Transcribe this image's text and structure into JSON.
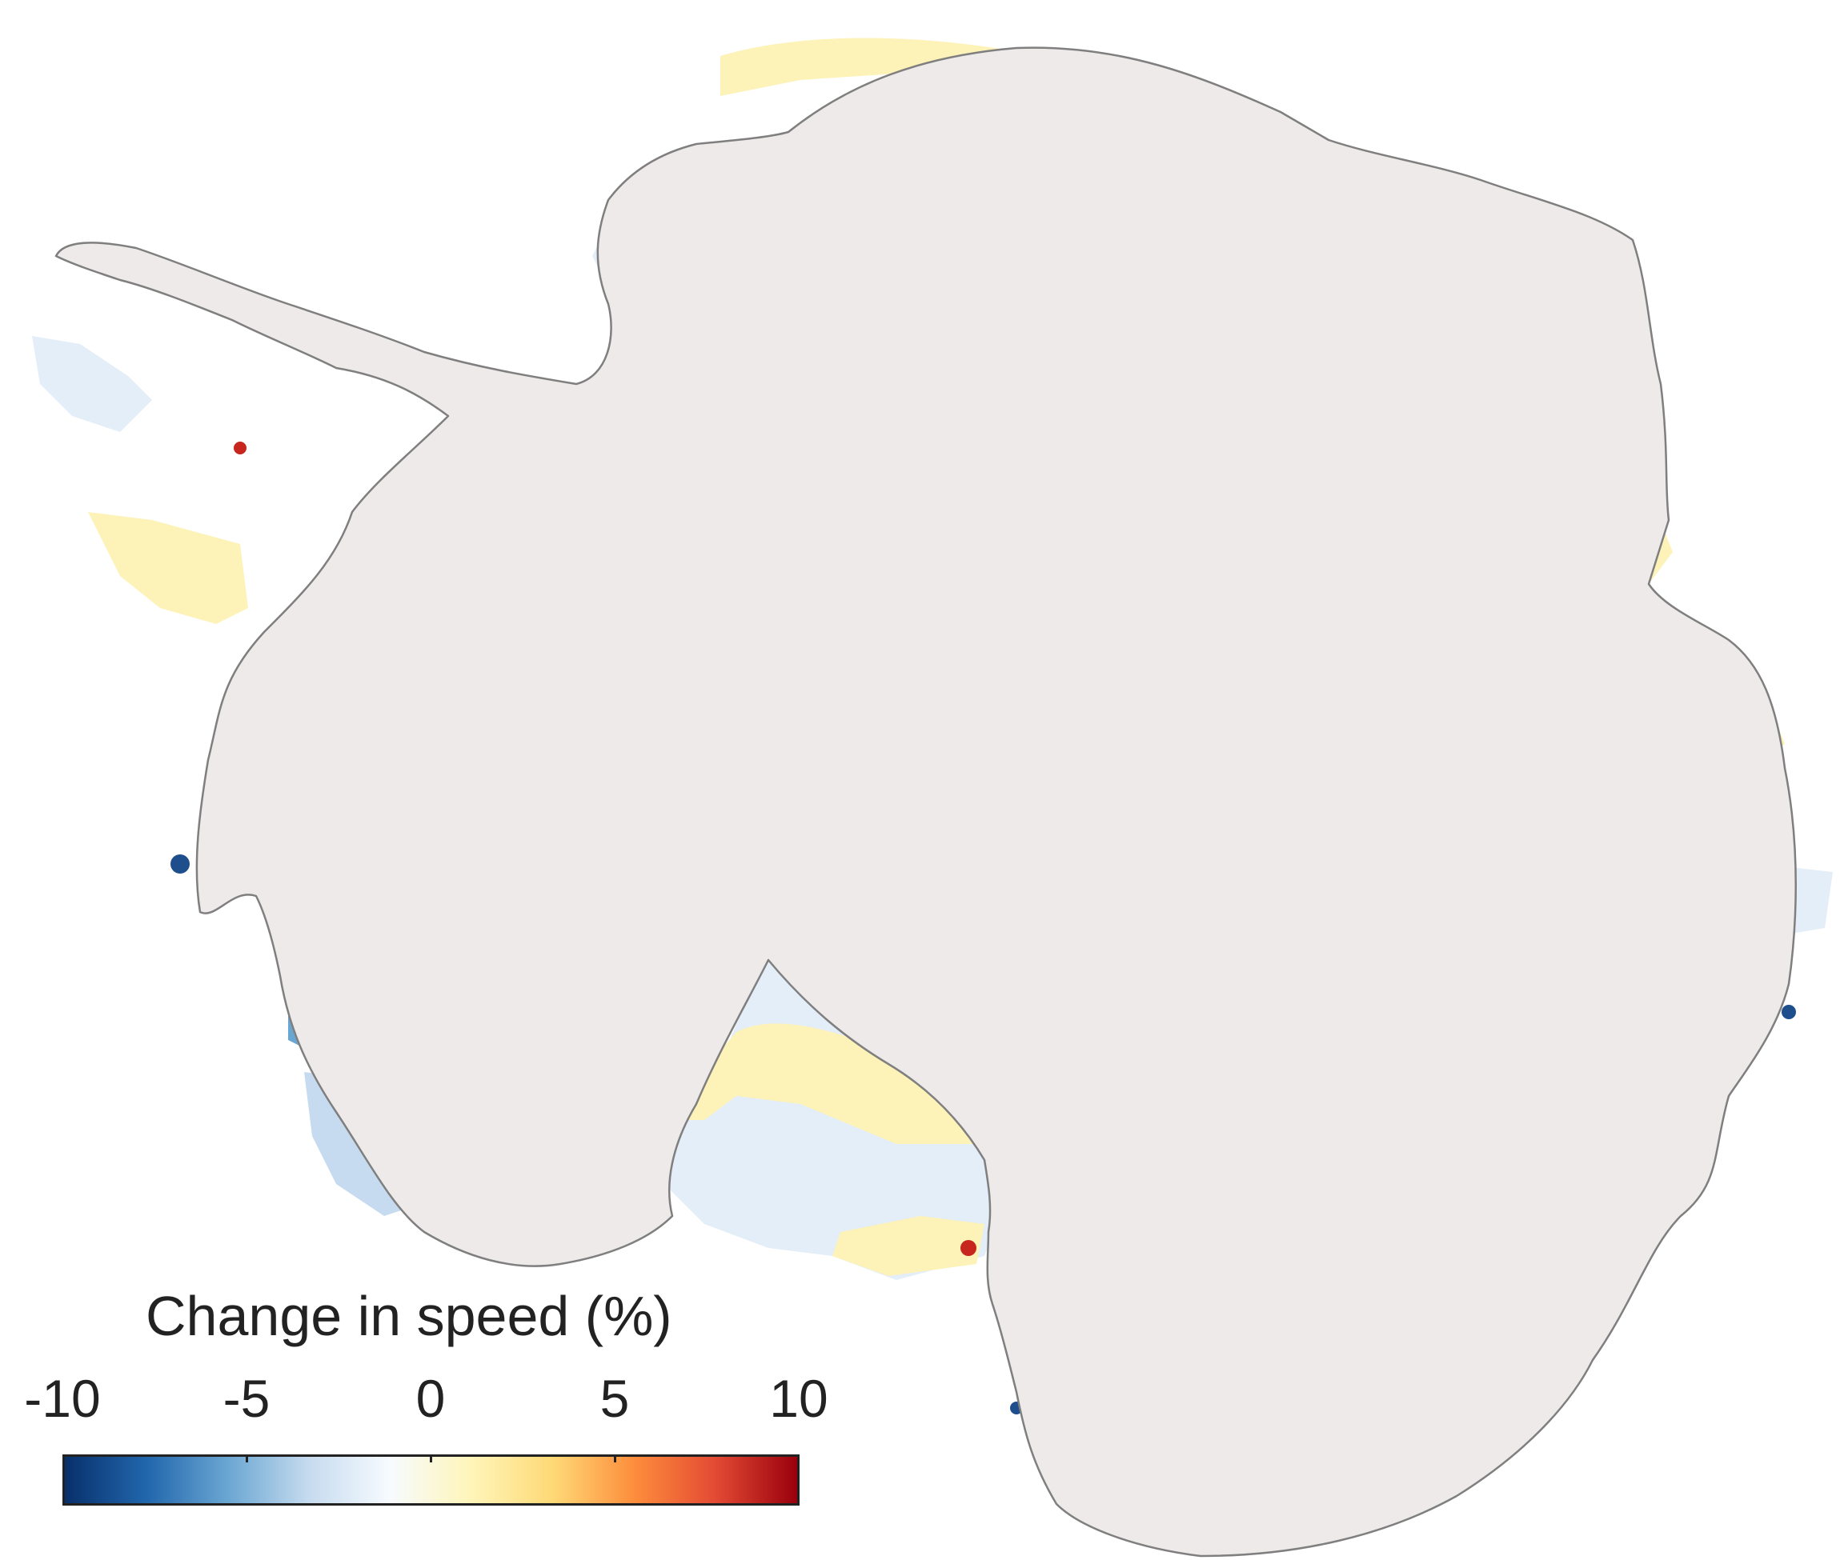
{
  "legend": {
    "title": "Change in speed (%)",
    "ticks": [
      "-10",
      "-5",
      "0",
      "5",
      "10"
    ],
    "colorscale": {
      "min": -10,
      "max": 10,
      "stops": [
        "#08306b",
        "#2166ac",
        "#6aa6d2",
        "#c6dbef",
        "#f7fbff",
        "#fff5b8",
        "#fed976",
        "#fd8d3c",
        "#e34a33",
        "#99000d"
      ]
    }
  },
  "colors": {
    "land": "#eeeae9",
    "coast": "#7f7f7f",
    "increase_light": "#fdf2b8",
    "decrease_light": "#e4eef8",
    "decrease_strong": "#1f4e8c",
    "increase_strong": "#c6261e"
  }
}
